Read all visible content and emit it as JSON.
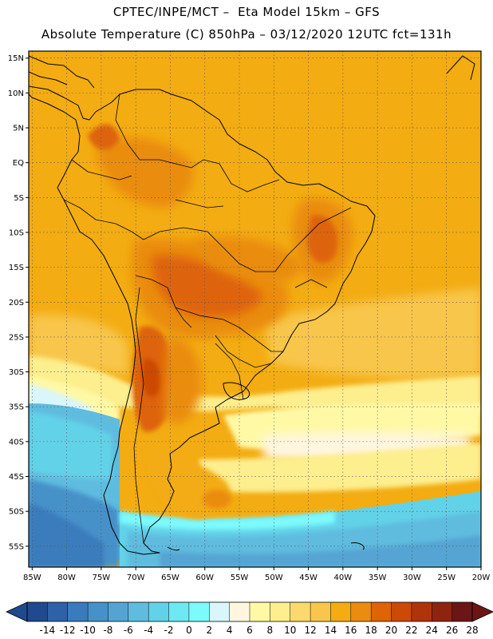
{
  "header": {
    "line1": "CPTEC/INPE/MCT –  Eta Model 15km – GFS",
    "line2": "Absolute Temperature (C) 850hPa – 03/12/2020 12UTC fct=131h"
  },
  "map": {
    "lat_labels": [
      "15N",
      "10N",
      "5N",
      "EQ",
      "5S",
      "10S",
      "15S",
      "20S",
      "25S",
      "30S",
      "35S",
      "40S",
      "45S",
      "50S",
      "55S"
    ],
    "lat_values": [
      15,
      10,
      5,
      0,
      -5,
      -10,
      -15,
      -20,
      -25,
      -30,
      -35,
      -40,
      -45,
      -50,
      -55
    ],
    "lon_labels": [
      "85W",
      "80W",
      "75W",
      "70W",
      "65W",
      "60W",
      "55W",
      "50W",
      "45W",
      "40W",
      "35W",
      "30W",
      "25W",
      "20W"
    ],
    "lon_values": [
      -85,
      -80,
      -75,
      -70,
      -65,
      -60,
      -55,
      -50,
      -45,
      -40,
      -35,
      -30,
      -25,
      -20
    ],
    "extent": {
      "lon_min": -85.5,
      "lon_max": -20,
      "lat_min": -58,
      "lat_max": 16
    },
    "gridlines": "dotted"
  },
  "colorbar": {
    "labels": [
      "-14",
      "-12",
      "-10",
      "-8",
      "-6",
      "-4",
      "-2",
      "0",
      "2",
      "4",
      "6",
      "8",
      "10",
      "12",
      "14",
      "16",
      "18",
      "20",
      "22",
      "24",
      "26",
      "28"
    ],
    "colors": [
      "#1f4a8f",
      "#2d62a8",
      "#3a7bbd",
      "#4791c9",
      "#54a4d3",
      "#5fbcdf",
      "#62d2e8",
      "#6ee8f2",
      "#7dfafc",
      "#d9f6fb",
      "#fff6df",
      "#fff9a6",
      "#fdee8e",
      "#fbd96f",
      "#f8c64c",
      "#f3ac12",
      "#ea8c10",
      "#de6407",
      "#cb4a06",
      "#b0340a",
      "#8d2410",
      "#6b1614"
    ]
  }
}
